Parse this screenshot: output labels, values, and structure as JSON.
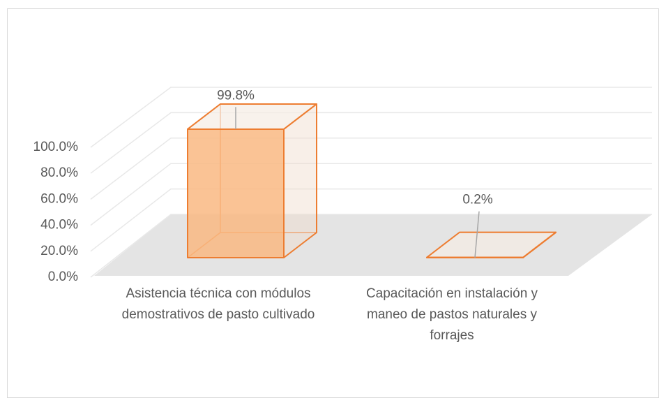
{
  "chart_data": {
    "type": "bar3d",
    "categories": [
      "Asistencia técnica con módulos demostrativos de pasto cultivado",
      "Capacitación en instalación y maneo de pastos naturales y forrajes"
    ],
    "values": [
      99.8,
      0.2
    ],
    "value_labels": [
      "99.8%",
      "0.2%"
    ],
    "color": "#ed7d31",
    "ylim": [
      0,
      100
    ],
    "yticks": [
      {
        "value": 0,
        "label": "0.0%"
      },
      {
        "value": 20,
        "label": "20.0%"
      },
      {
        "value": 40,
        "label": "40.0%"
      },
      {
        "value": 60,
        "label": "60.0%"
      },
      {
        "value": 80,
        "label": "80.0%"
      },
      {
        "value": 100,
        "label": "100.0%"
      }
    ],
    "grid": true
  }
}
